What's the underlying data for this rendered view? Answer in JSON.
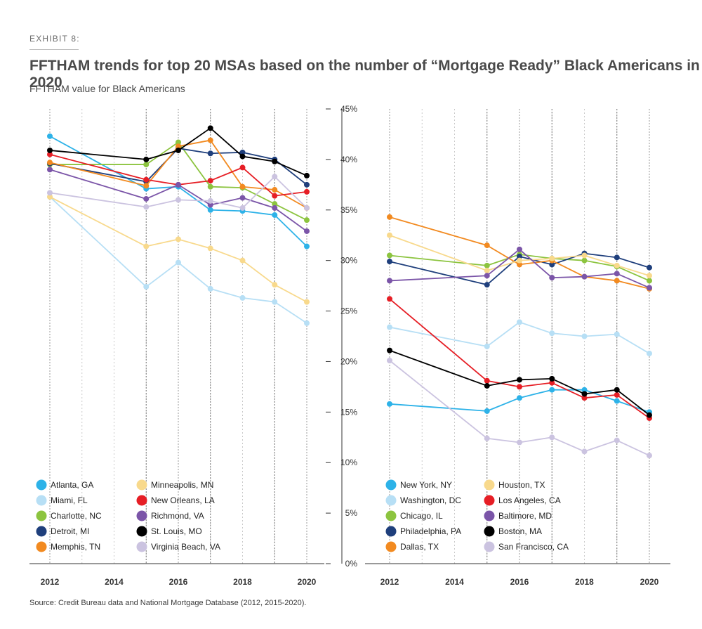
{
  "exhibit_label": "EXHIBIT 8:",
  "title": "FFTHAM trends for top 20 MSAs based on the number of “Mortgage Ready” Black Americans in 2020",
  "subtitle": "FFTHAM value for Black Americans",
  "source": "Source: Credit Bureau data and National Mortgage Database (2012, 2015-2020).",
  "chart_data": [
    {
      "type": "line",
      "name": "left-panel",
      "x": [
        2012,
        2015,
        2016,
        2017,
        2018,
        2019,
        2020
      ],
      "x_tick_labels": [
        "2012",
        "2014",
        "2016",
        "2018",
        "2020"
      ],
      "ylim": [
        0,
        0.45
      ],
      "series": [
        {
          "name": "Atlanta, GA",
          "color": "#2db2e8",
          "values": [
            0.423,
            0.371,
            0.373,
            0.35,
            0.349,
            0.345,
            0.314
          ]
        },
        {
          "name": "Miami, FL",
          "color": "#b7dff5",
          "values": [
            0.363,
            0.274,
            0.298,
            0.272,
            0.263,
            0.259,
            0.238
          ]
        },
        {
          "name": "Charlotte, NC",
          "color": "#8cc43f",
          "values": [
            0.395,
            0.395,
            0.417,
            0.373,
            0.372,
            0.356,
            0.34
          ]
        },
        {
          "name": "Detroit, MI",
          "color": "#1f3f7c",
          "values": [
            0.396,
            0.378,
            0.411,
            0.406,
            0.407,
            0.4,
            0.375
          ]
        },
        {
          "name": "Memphis, TN",
          "color": "#f28a20",
          "values": [
            0.397,
            0.374,
            0.413,
            0.419,
            0.373,
            0.37,
            0.352
          ]
        },
        {
          "name": "Minneapolis, MN",
          "color": "#f8d98c",
          "values": [
            0.363,
            0.314,
            0.321,
            0.312,
            0.3,
            0.276,
            0.259
          ]
        },
        {
          "name": "New Orleans, LA",
          "color": "#e61e25",
          "values": [
            0.405,
            0.38,
            0.375,
            0.379,
            0.392,
            0.364,
            0.368
          ]
        },
        {
          "name": "Richmond, VA",
          "color": "#7b55a8",
          "values": [
            0.39,
            0.361,
            0.375,
            0.355,
            0.362,
            0.352,
            0.329
          ]
        },
        {
          "name": "St. Louis, MO",
          "color": "#000000",
          "values": [
            0.409,
            0.4,
            0.409,
            0.431,
            0.403,
            0.398,
            0.384
          ]
        },
        {
          "name": "Virginia Beach, VA",
          "color": "#cbc3e0",
          "values": [
            0.367,
            0.353,
            0.36,
            0.359,
            0.352,
            0.383,
            0.352
          ]
        }
      ]
    },
    {
      "type": "line",
      "name": "right-panel",
      "x": [
        2012,
        2015,
        2016,
        2017,
        2018,
        2019,
        2020
      ],
      "x_tick_labels": [
        "2012",
        "2014",
        "2016",
        "2018",
        "2020"
      ],
      "ylim": [
        0,
        0.45
      ],
      "y_ticks": [
        0,
        0.05,
        0.1,
        0.15,
        0.2,
        0.25,
        0.3,
        0.35,
        0.4,
        0.45
      ],
      "y_tick_labels": [
        "0%",
        "5%",
        "10%",
        "15%",
        "20%",
        "25%",
        "30%",
        "35%",
        "40%",
        "45%"
      ],
      "series": [
        {
          "name": "New York, NY",
          "color": "#2db2e8",
          "values": [
            0.158,
            0.151,
            0.164,
            0.172,
            0.172,
            0.161,
            0.15
          ]
        },
        {
          "name": "Washington, DC",
          "color": "#b7dff5",
          "values": [
            0.234,
            0.215,
            0.239,
            0.228,
            0.225,
            0.227,
            0.208
          ]
        },
        {
          "name": "Chicago, IL",
          "color": "#8cc43f",
          "values": [
            0.305,
            0.295,
            0.306,
            0.302,
            0.3,
            0.294,
            0.28
          ]
        },
        {
          "name": "Philadelphia, PA",
          "color": "#1f3f7c",
          "values": [
            0.299,
            0.276,
            0.304,
            0.296,
            0.307,
            0.303,
            0.293
          ]
        },
        {
          "name": "Dallas, TX",
          "color": "#f28a20",
          "values": [
            0.343,
            0.315,
            0.296,
            0.3,
            0.284,
            0.28,
            0.272
          ]
        },
        {
          "name": "Houston, TX",
          "color": "#f8d98c",
          "values": [
            0.325,
            0.29,
            0.3,
            0.302,
            0.305,
            0.295,
            0.285
          ]
        },
        {
          "name": "Los Angeles, CA",
          "color": "#e61e25",
          "values": [
            0.262,
            0.181,
            0.175,
            0.179,
            0.164,
            0.167,
            0.144
          ]
        },
        {
          "name": "Baltimore, MD",
          "color": "#7b55a8",
          "values": [
            0.28,
            0.285,
            0.311,
            0.283,
            0.284,
            0.287,
            0.273
          ]
        },
        {
          "name": "Boston, MA",
          "color": "#000000",
          "values": [
            0.211,
            0.176,
            0.182,
            0.183,
            0.168,
            0.172,
            0.147
          ]
        },
        {
          "name": "San Francisco, CA",
          "color": "#cbc3e0",
          "values": [
            0.201,
            0.124,
            0.12,
            0.125,
            0.111,
            0.122,
            0.107
          ]
        }
      ]
    }
  ]
}
